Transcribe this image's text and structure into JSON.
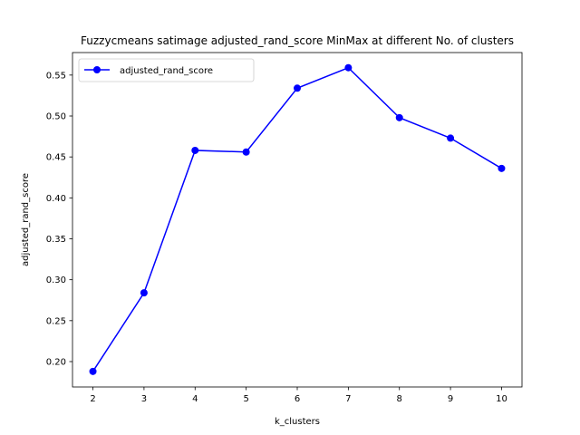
{
  "chart_data": {
    "type": "line",
    "title": "Fuzzycmeans satimage adjusted_rand_score MinMax at different No. of clusters",
    "xlabel": "k_clusters",
    "ylabel": "adjusted_rand_score",
    "x": [
      2,
      3,
      4,
      5,
      6,
      7,
      8,
      9,
      10
    ],
    "xlim": [
      1.6,
      10.4
    ],
    "ylim": [
      0.169,
      0.5775
    ],
    "xticks": [
      "2",
      "3",
      "4",
      "5",
      "6",
      "7",
      "8",
      "9",
      "10"
    ],
    "yticks": [
      "0.20",
      "0.25",
      "0.30",
      "0.35",
      "0.40",
      "0.45",
      "0.50",
      "0.55"
    ],
    "grid": false,
    "legend_position": "upper-left",
    "series": [
      {
        "name": "adjusted_rand_score",
        "color": "#0000ff",
        "marker": "circle",
        "values": [
          0.188,
          0.284,
          0.458,
          0.456,
          0.534,
          0.559,
          0.498,
          0.473,
          0.436
        ]
      }
    ]
  }
}
